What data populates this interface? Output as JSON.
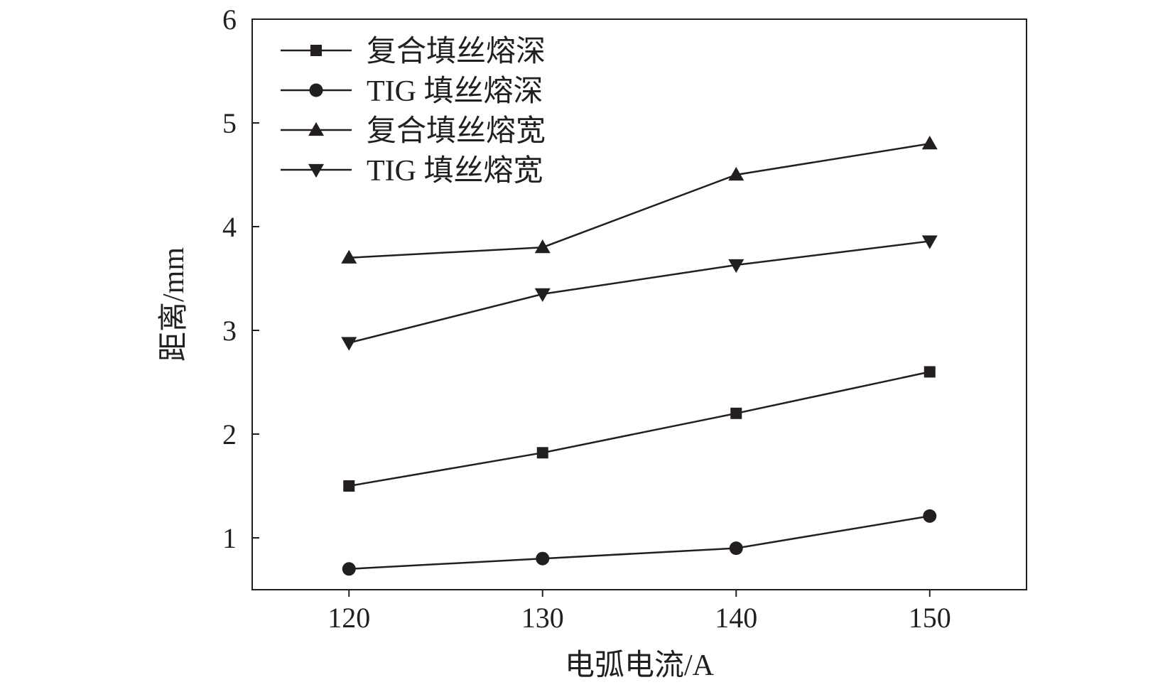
{
  "chart_data": {
    "type": "line",
    "xlabel": "电弧电流/A",
    "ylabel": "距离/mm",
    "x": [
      120,
      130,
      140,
      150
    ],
    "xlim": [
      115,
      155
    ],
    "ylim": [
      0.5,
      6
    ],
    "xticks": [
      120,
      130,
      140,
      150
    ],
    "yticks": [
      1,
      2,
      3,
      4,
      5,
      6
    ],
    "grid": false,
    "legend_position": "top-left",
    "series": [
      {
        "name": "复合填丝熔深",
        "marker": "square",
        "values": [
          1.5,
          1.82,
          2.2,
          2.6
        ]
      },
      {
        "name": "TIG 填丝熔深",
        "marker": "circle",
        "values": [
          0.7,
          0.8,
          0.9,
          1.21
        ]
      },
      {
        "name": "复合填丝熔宽",
        "marker": "triangle-up",
        "values": [
          3.7,
          3.8,
          4.5,
          4.8
        ]
      },
      {
        "name": "TIG 填丝熔宽",
        "marker": "triangle-down",
        "values": [
          2.88,
          3.35,
          3.63,
          3.86
        ]
      }
    ],
    "colors": {
      "line": "#231f20",
      "marker": "#231f20"
    }
  }
}
